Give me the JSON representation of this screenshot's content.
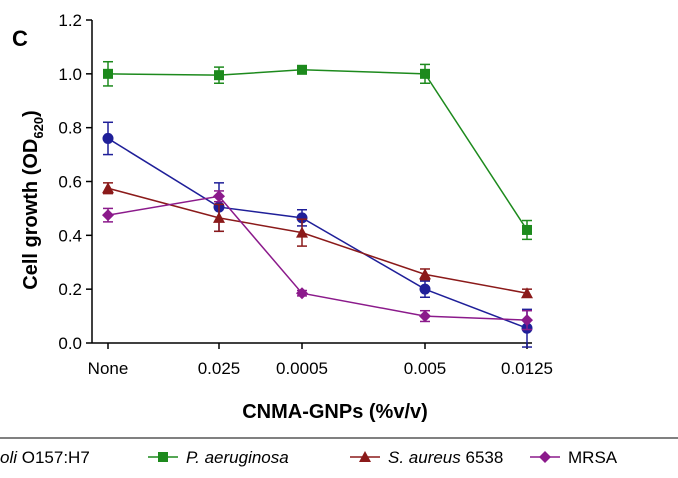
{
  "chart_data": {
    "type": "line",
    "panel_label": "C",
    "xlabel": "CNMA-GNPs (%v/v)",
    "ylabel": "Cell growth (OD",
    "ylabel_sub": "620",
    "ylabel_close": ")",
    "categories": [
      "None",
      "0.025",
      "0.0005",
      "0.005",
      "0.0125"
    ],
    "ylim": [
      0,
      1.2
    ],
    "yticks": [
      "0.0",
      "0.2",
      "0.4",
      "0.6",
      "0.8",
      "1.0",
      "1.2"
    ],
    "grid": false,
    "legend_position": "bottom",
    "series": [
      {
        "name_italic": "oli",
        "name_rest": " O157:H7",
        "color": "#1f1f99",
        "marker": "circle",
        "values": [
          0.76,
          0.505,
          0.465,
          0.2,
          0.055
        ],
        "errors": [
          0.06,
          0.09,
          0.03,
          0.03,
          0.07
        ]
      },
      {
        "name_italic": "P. aeruginosa",
        "name_rest": "",
        "color": "#1d8a1d",
        "marker": "square",
        "values": [
          1.0,
          0.995,
          1.015,
          1.0,
          0.42
        ],
        "errors": [
          0.045,
          0.03,
          0.015,
          0.035,
          0.035
        ]
      },
      {
        "name_italic": "S. aureus",
        "name_rest": " 6538",
        "color": "#8b1a1a",
        "marker": "triangle",
        "values": [
          0.575,
          0.465,
          0.41,
          0.255,
          0.185
        ],
        "errors": [
          0.02,
          0.05,
          0.05,
          0.02,
          0.015
        ]
      },
      {
        "name_italic": "",
        "name_rest": "MRSA",
        "color": "#8b1a8b",
        "marker": "diamond",
        "values": [
          0.475,
          0.545,
          0.185,
          0.1,
          0.085
        ],
        "errors": [
          0.025,
          0.02,
          0.01,
          0.02,
          0.035
        ]
      }
    ]
  }
}
